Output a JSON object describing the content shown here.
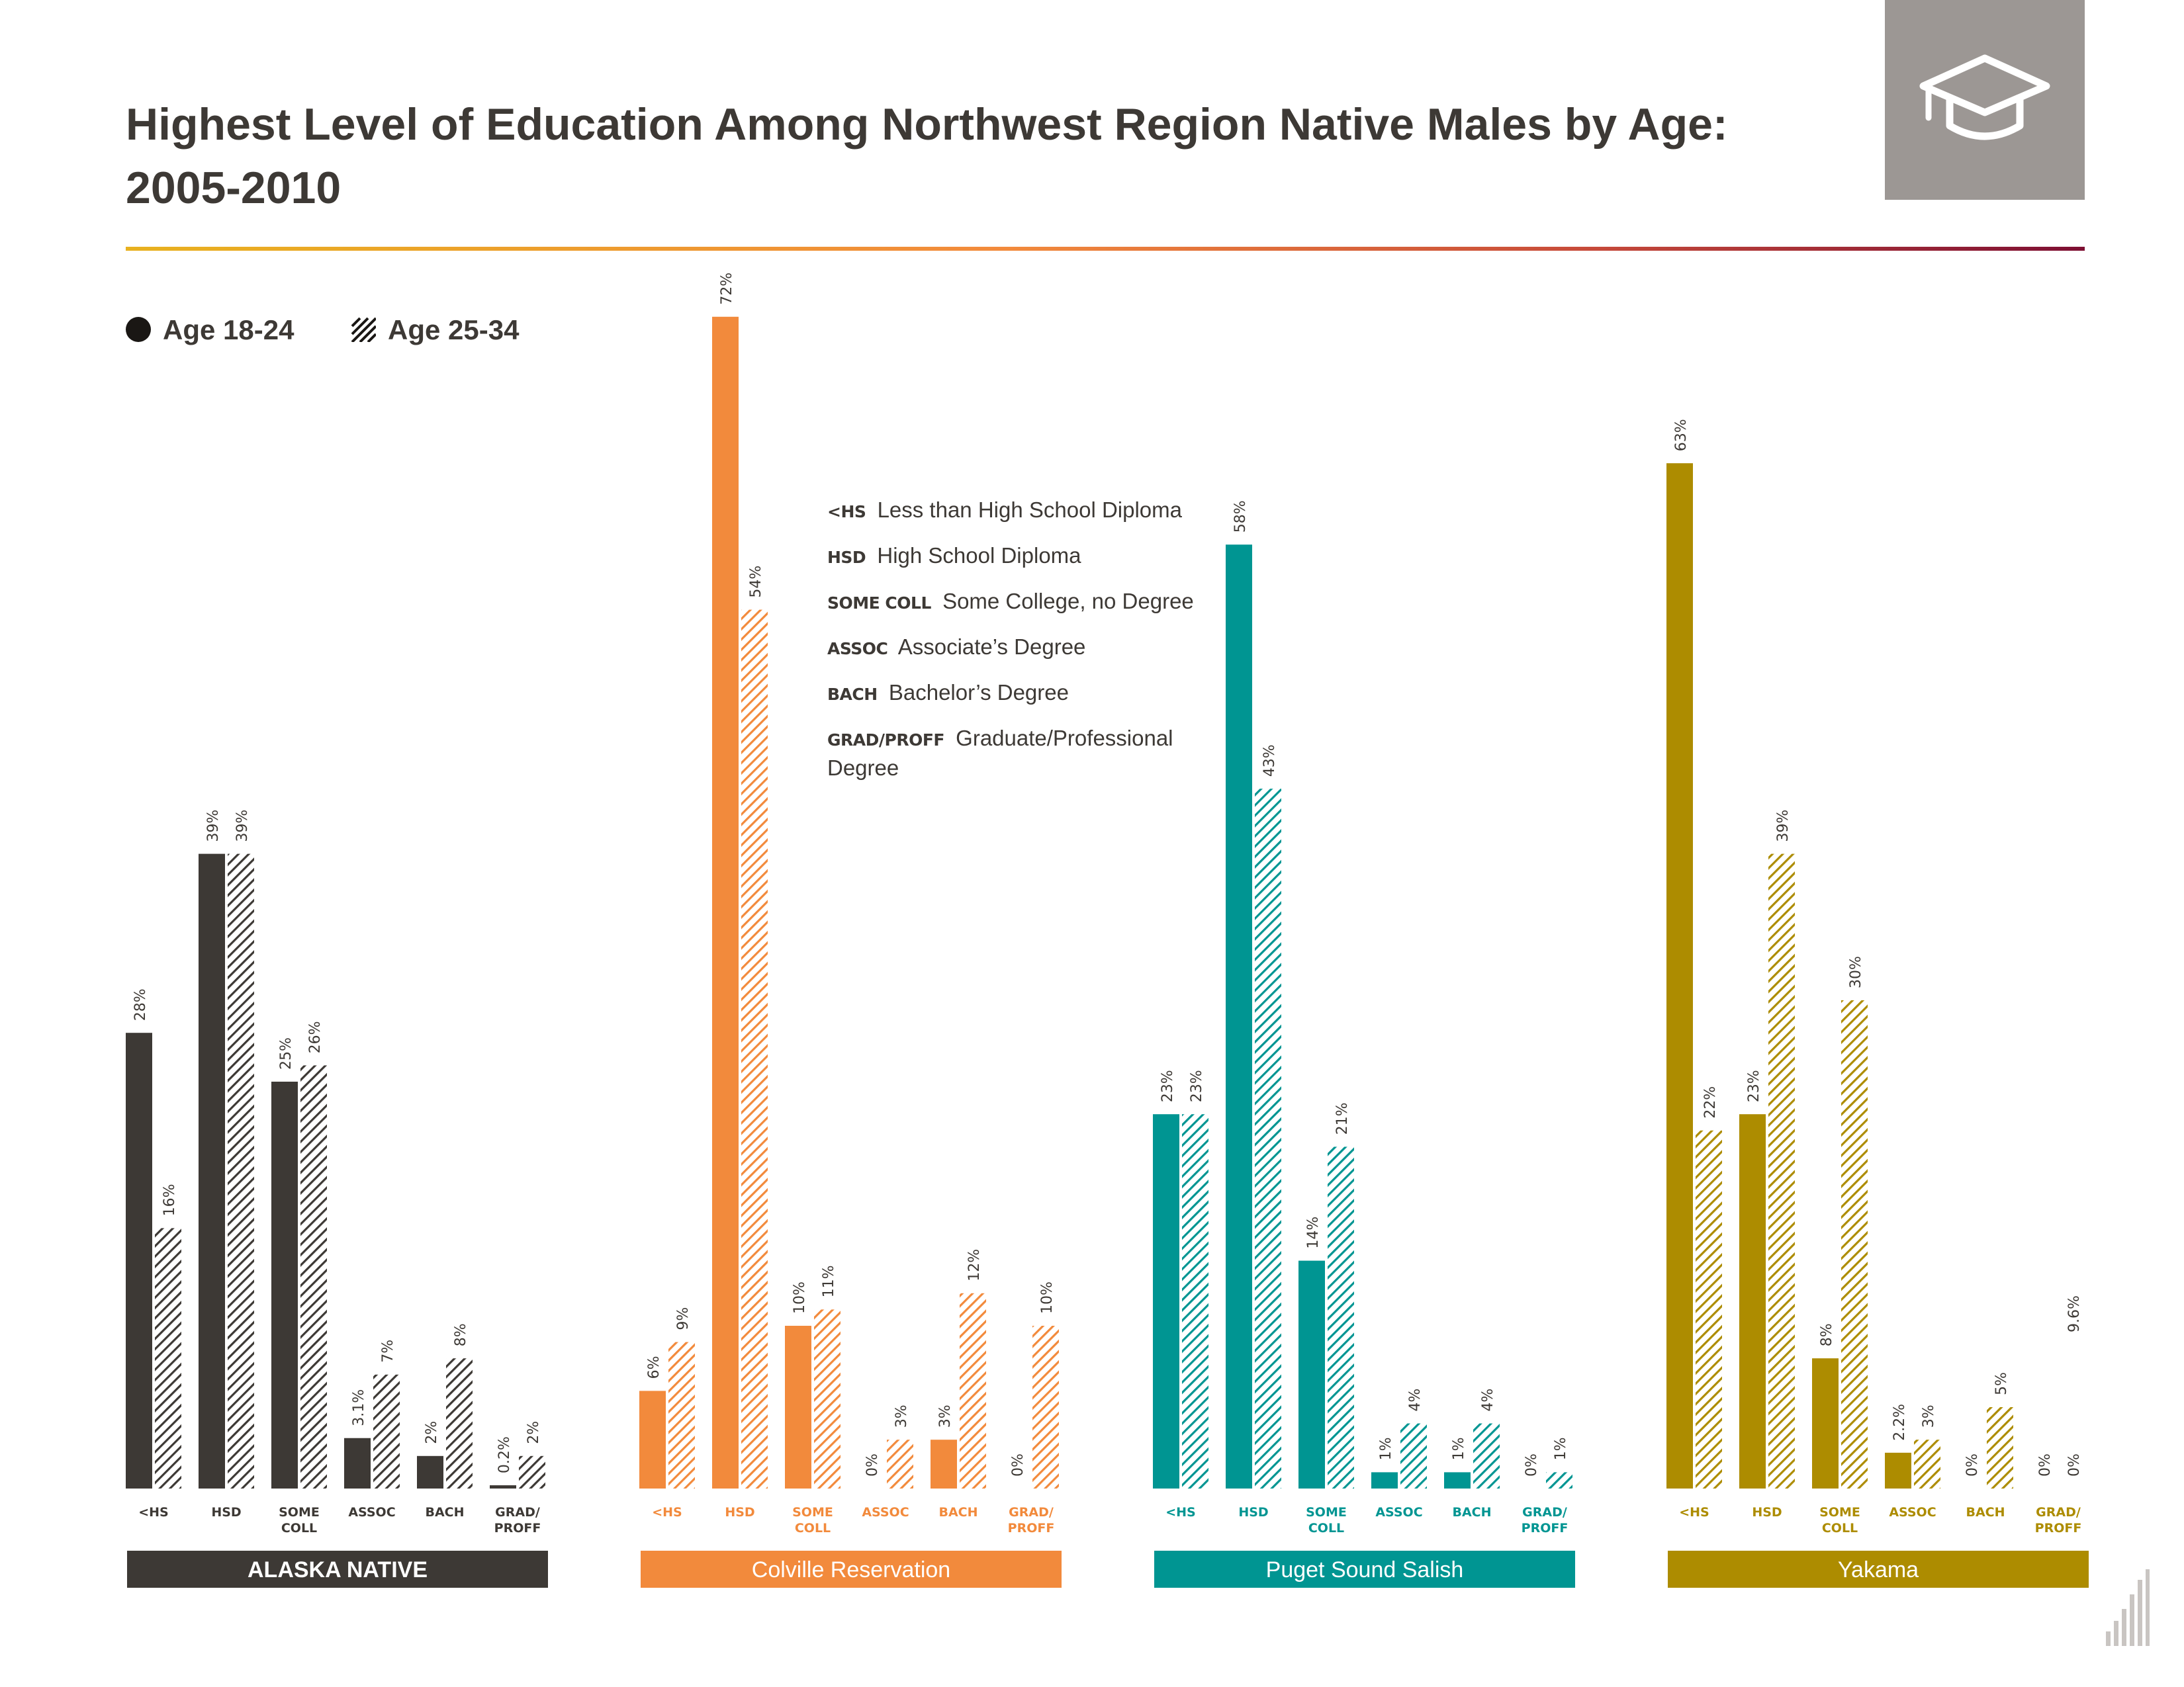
{
  "title": "Highest Level of Education Among Northwest Region Native Males by Age: 2005-2010",
  "icon": "graduation-cap-icon",
  "legend": [
    {
      "label": "Age 18-24",
      "style": "solid"
    },
    {
      "label": "Age 25-34",
      "style": "hatched"
    }
  ],
  "abbreviations": [
    {
      "code": "<HS",
      "meaning": "Less than High School Diploma"
    },
    {
      "code": "HSD",
      "meaning": "High School Diploma"
    },
    {
      "code": "SOME COLL",
      "meaning": "Some College, no Degree"
    },
    {
      "code": "ASSOC",
      "meaning": "Associate’s Degree"
    },
    {
      "code": "BACH",
      "meaning": "Bachelor’s Degree"
    },
    {
      "code": "GRAD/PROFF",
      "meaning": "Graduate/Professional Degree"
    }
  ],
  "chart_data": {
    "type": "bar",
    "categories": [
      "<HS",
      "HSD",
      "SOME COLL",
      "ASSOC",
      "BACH",
      "GRAD/ PROFF"
    ],
    "ylim": [
      0,
      72
    ],
    "groups": [
      {
        "name": "ALASKA NATIVE",
        "color": "#3d3935",
        "series": [
          {
            "name": "Age 18-24",
            "values": [
              28,
              39,
              25,
              3.1,
              2,
              0.2
            ],
            "labels": [
              "28%",
              "39%",
              "25%",
              "3.1%",
              "2%",
              "0.2%"
            ]
          },
          {
            "name": "Age 25-34",
            "values": [
              16,
              39,
              26,
              7,
              8,
              2
            ],
            "labels": [
              "16%",
              "39%",
              "26%",
              "7%",
              "8%",
              "2%"
            ]
          }
        ]
      },
      {
        "name": "Colville Reservation",
        "color": "#f28a3c",
        "series": [
          {
            "name": "Age 18-24",
            "values": [
              6,
              72,
              10,
              0,
              3,
              0
            ],
            "labels": [
              "6%",
              "72%",
              "10%",
              "0%",
              "3%",
              "0%"
            ]
          },
          {
            "name": "Age 25-34",
            "values": [
              9,
              54,
              11,
              3,
              12,
              10
            ],
            "labels": [
              "9%",
              "54%",
              "11%",
              "3%",
              "12%",
              "10%"
            ]
          }
        ]
      },
      {
        "name": "Puget Sound Salish",
        "color": "#009592",
        "series": [
          {
            "name": "Age 18-24",
            "values": [
              23,
              58,
              14,
              1,
              1,
              0
            ],
            "labels": [
              "23%",
              "58%",
              "14%",
              "1%",
              "1%",
              "0%"
            ]
          },
          {
            "name": "Age 25-34",
            "values": [
              23,
              43,
              21,
              4,
              4,
              1
            ],
            "labels": [
              "23%",
              "43%",
              "21%",
              "4%",
              "4%",
              "1%"
            ]
          }
        ]
      },
      {
        "name": "Yakama",
        "color": "#ad8c00",
        "series": [
          {
            "name": "Age 18-24",
            "values": [
              63,
              23,
              8,
              2.2,
              0,
              0
            ],
            "labels": [
              "63%",
              "23%",
              "8%",
              "2.2%",
              "0%",
              "0%"
            ]
          },
          {
            "name": "Age 25-34",
            "values": [
              22,
              39,
              30,
              3,
              5,
              0
            ],
            "labels": [
              "22%",
              "39%",
              "30%",
              "3%",
              "5%",
              "0%"
            ]
          }
        ],
        "extra_labels": [
          "9.6%"
        ]
      }
    ]
  }
}
